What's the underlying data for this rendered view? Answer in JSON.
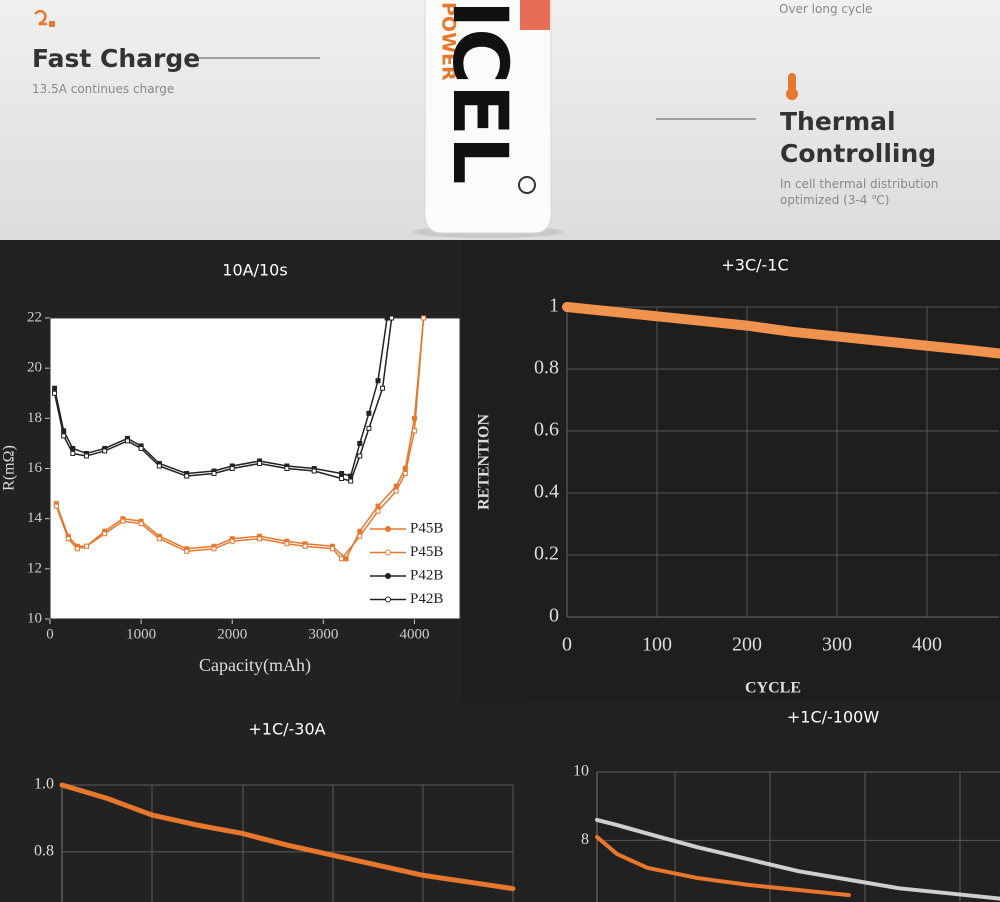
{
  "banner": {
    "cycle_note": "Over long cycle",
    "fast_charge_title": "Fast Charge",
    "fast_charge_text": "13.5A continues charge",
    "thermal_title": "Thermal Controlling",
    "thermal_text": "In cell thermal distribution optimized (3-4 ℃)",
    "brand_sub": "POWER",
    "brand": "ICEL"
  },
  "chart_data": [
    {
      "type": "line",
      "title": "10A/10s",
      "x_label": "Capacity(mAh)",
      "y_label": "R(mΩ)",
      "xlim": [
        0,
        4500
      ],
      "xticks": [
        0,
        1000,
        2000,
        3000,
        4000
      ],
      "ylim": [
        10,
        22
      ],
      "yticks": [
        10,
        12,
        14,
        16,
        18,
        20,
        22
      ],
      "grid": false,
      "legend": "lower right",
      "series": [
        {
          "name": "P45B",
          "color": "#e8772e",
          "marker": "filled",
          "x": [
            70,
            200,
            300,
            400,
            600,
            800,
            1000,
            1200,
            1500,
            1800,
            2000,
            2300,
            2600,
            2800,
            3100,
            3250,
            3400,
            3600,
            3800,
            3900,
            4000,
            4100
          ],
          "values": [
            14.6,
            13.3,
            12.9,
            12.9,
            13.5,
            14,
            13.9,
            13.3,
            12.8,
            12.9,
            13.2,
            13.3,
            13.1,
            13.0,
            12.9,
            12.4,
            13.5,
            14.5,
            15.3,
            16,
            18,
            22
          ]
        },
        {
          "name": "P45B",
          "color": "#e8772e",
          "marker": "open",
          "x": [
            70,
            200,
            300,
            400,
            600,
            800,
            1000,
            1200,
            1500,
            1800,
            2000,
            2300,
            2600,
            2800,
            3100,
            3200,
            3400,
            3600,
            3800,
            3900,
            4000,
            4100
          ],
          "values": [
            14.5,
            13.2,
            12.8,
            12.9,
            13.4,
            13.9,
            13.8,
            13.2,
            12.7,
            12.8,
            13.1,
            13.2,
            13.0,
            12.9,
            12.8,
            12.4,
            13.3,
            14.3,
            15.1,
            15.8,
            17.5,
            22
          ]
        },
        {
          "name": "P42B",
          "color": "#ffffff",
          "marker": "filled",
          "x": [
            50,
            150,
            250,
            400,
            600,
            850,
            1000,
            1200,
            1500,
            1800,
            2000,
            2300,
            2600,
            2900,
            3200,
            3300,
            3400,
            3500,
            3600,
            3700
          ],
          "values": [
            19.2,
            17.5,
            16.8,
            16.6,
            16.8,
            17.2,
            16.9,
            16.2,
            15.8,
            15.9,
            16.1,
            16.3,
            16.1,
            16.0,
            15.8,
            15.7,
            17,
            18.2,
            19.5,
            22
          ]
        },
        {
          "name": "P42B",
          "color": "#ffffff",
          "marker": "open",
          "x": [
            50,
            150,
            250,
            400,
            600,
            850,
            1000,
            1200,
            1500,
            1800,
            2000,
            2300,
            2600,
            2900,
            3200,
            3300,
            3400,
            3500,
            3650,
            3750
          ],
          "values": [
            19.0,
            17.3,
            16.6,
            16.5,
            16.7,
            17.1,
            16.8,
            16.1,
            15.7,
            15.8,
            16.0,
            16.2,
            16.0,
            15.9,
            15.6,
            15.5,
            16.5,
            17.6,
            19.2,
            22
          ]
        }
      ]
    },
    {
      "type": "line",
      "title": "+3C/-1C",
      "x_label": "CYCLE",
      "y_label": "RETENTION",
      "xlim": [
        0,
        480
      ],
      "xticks": [
        0,
        100,
        200,
        300,
        400
      ],
      "ylim": [
        0,
        1
      ],
      "yticks": [
        0,
        0.2,
        0.4,
        0.6,
        0.8,
        1
      ],
      "grid": true,
      "x": [
        0,
        50,
        100,
        150,
        200,
        250,
        300,
        350,
        400,
        450,
        480
      ],
      "series": [
        {
          "color": "#f0934f",
          "values": [
            1,
            0.985,
            0.97,
            0.955,
            0.94,
            0.92,
            0.905,
            0.89,
            0.875,
            0.86,
            0.85
          ]
        }
      ]
    },
    {
      "type": "line",
      "title": "+1C/-30A",
      "xlim": [
        0,
        500
      ],
      "ylim": [
        0.65,
        1
      ],
      "yticks": [
        {
          "value": 1,
          "label": "1.0"
        },
        0.8
      ],
      "grid": true,
      "x": [
        0,
        50,
        100,
        150,
        200,
        250,
        300,
        350,
        400,
        450,
        500
      ],
      "series": [
        {
          "color": "#e8772e",
          "values": [
            1,
            0.96,
            0.91,
            0.88,
            0.855,
            0.82,
            0.79,
            0.76,
            0.73,
            0.71,
            0.69
          ]
        }
      ]
    },
    {
      "type": "line",
      "title": "+1C/-100W",
      "xlim": [
        0,
        400
      ],
      "ylim": [
        6.2,
        10
      ],
      "yticks": [
        10,
        8
      ],
      "grid": true,
      "x": [
        0,
        20,
        50,
        100,
        150,
        200,
        250,
        300,
        350,
        400
      ],
      "series": [
        {
          "color": "#cfcfcf",
          "values": [
            8.6,
            8.45,
            8.2,
            7.8,
            7.45,
            7.1,
            6.85,
            6.6,
            6.45,
            6.3
          ]
        },
        {
          "color": "#e8772e",
          "values": [
            8.1,
            7.6,
            7.2,
            6.9,
            6.7,
            6.55,
            6.4,
            null,
            null,
            null
          ]
        }
      ]
    }
  ]
}
